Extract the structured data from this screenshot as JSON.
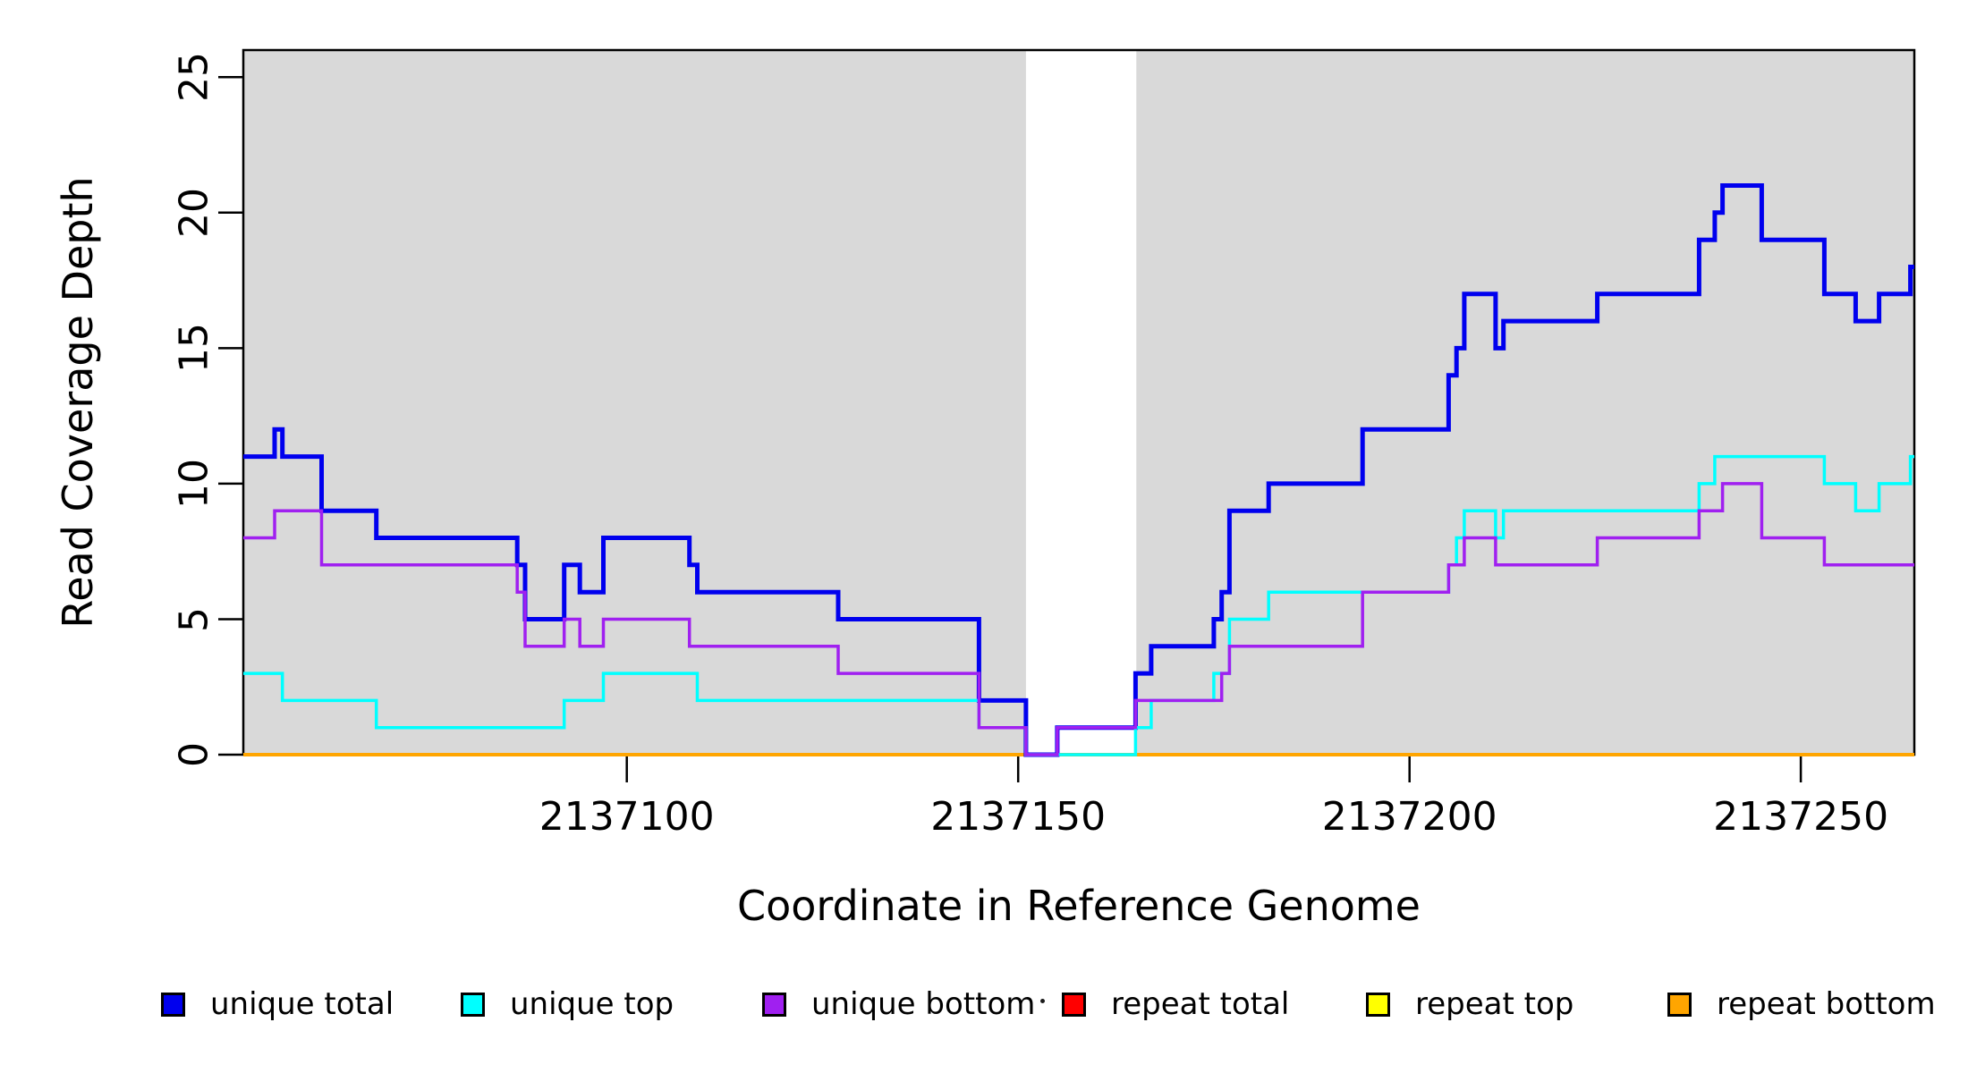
{
  "figure": {
    "xlabel": "Coordinate in Reference Genome",
    "ylabel": "Read Coverage Depth",
    "background_color": "#FFFFFF",
    "shaded_color": "#D9D9D9",
    "axis_color": "#000000"
  },
  "legend": {
    "items": [
      {
        "label": "unique total",
        "color": "#0000EE"
      },
      {
        "label": "unique top",
        "color": "#00FFFF"
      },
      {
        "label": "unique bottom",
        "color": "#A020F0"
      },
      {
        "label": "repeat total",
        "color": "#FF0000"
      },
      {
        "label": "repeat top",
        "color": "#FFFF00"
      },
      {
        "label": "repeat bottom",
        "color": "#FFA500"
      }
    ]
  },
  "chart_data": {
    "type": "line",
    "subtype": "step",
    "title": "",
    "xlabel": "Coordinate in Reference Genome",
    "ylabel": "Read Coverage Depth",
    "xlim": [
      2137051,
      2137264.5
    ],
    "ylim": [
      0,
      26
    ],
    "x_ticks": [
      2137100,
      2137150,
      2137200,
      2137250
    ],
    "y_ticks": [
      0,
      5,
      10,
      15,
      20,
      25
    ],
    "grid": false,
    "legend_position": "bottom",
    "shaded_x_ranges": [
      [
        2137051,
        2137151
      ],
      [
        2137165.1,
        2137264.5
      ]
    ],
    "gap_x_range": [
      2137151,
      2137165.1
    ],
    "draw_order": [
      "repeat total",
      "repeat top",
      "repeat bottom",
      "unique total",
      "unique top",
      "unique bottom"
    ],
    "series": [
      {
        "name": "unique total",
        "color": "#0000EE",
        "width": 5,
        "steps": [
          [
            2137051,
            11
          ],
          [
            2137055,
            12
          ],
          [
            2137056,
            11
          ],
          [
            2137061,
            9
          ],
          [
            2137068,
            8
          ],
          [
            2137086,
            7
          ],
          [
            2137087,
            5
          ],
          [
            2137092,
            7
          ],
          [
            2137094,
            6
          ],
          [
            2137097,
            8
          ],
          [
            2137108,
            7
          ],
          [
            2137109,
            6
          ],
          [
            2137127,
            5
          ],
          [
            2137145,
            2
          ],
          [
            2137151,
            0
          ],
          [
            2137155,
            1
          ],
          [
            2137165,
            3
          ],
          [
            2137167,
            4
          ],
          [
            2137175,
            5
          ],
          [
            2137176,
            6
          ],
          [
            2137177,
            9
          ],
          [
            2137182,
            10
          ],
          [
            2137194,
            12
          ],
          [
            2137205,
            14
          ],
          [
            2137206,
            15
          ],
          [
            2137207,
            17
          ],
          [
            2137211,
            15
          ],
          [
            2137212,
            16
          ],
          [
            2137224,
            17
          ],
          [
            2137237,
            19
          ],
          [
            2137239,
            20
          ],
          [
            2137240,
            21
          ],
          [
            2137245,
            19
          ],
          [
            2137253,
            17
          ],
          [
            2137257,
            16
          ],
          [
            2137260,
            17
          ],
          [
            2137264,
            18
          ]
        ]
      },
      {
        "name": "unique top",
        "color": "#00FFFF",
        "width": 3.5,
        "steps": [
          [
            2137051,
            3
          ],
          [
            2137056,
            2
          ],
          [
            2137068,
            1
          ],
          [
            2137092,
            2
          ],
          [
            2137097,
            3
          ],
          [
            2137109,
            2
          ],
          [
            2137145,
            1
          ],
          [
            2137151,
            0
          ],
          [
            2137165,
            1
          ],
          [
            2137167,
            2
          ],
          [
            2137175,
            3
          ],
          [
            2137177,
            5
          ],
          [
            2137182,
            6
          ],
          [
            2137205,
            7
          ],
          [
            2137206,
            8
          ],
          [
            2137207,
            9
          ],
          [
            2137211,
            8
          ],
          [
            2137212,
            9
          ],
          [
            2137237,
            10
          ],
          [
            2137239,
            11
          ],
          [
            2137253,
            10
          ],
          [
            2137257,
            9
          ],
          [
            2137260,
            10
          ],
          [
            2137264,
            11
          ]
        ]
      },
      {
        "name": "unique bottom",
        "color": "#A020F0",
        "width": 3.5,
        "steps": [
          [
            2137051,
            8
          ],
          [
            2137055,
            9
          ],
          [
            2137061,
            7
          ],
          [
            2137086,
            6
          ],
          [
            2137087,
            4
          ],
          [
            2137092,
            5
          ],
          [
            2137094,
            4
          ],
          [
            2137097,
            5
          ],
          [
            2137108,
            4
          ],
          [
            2137127,
            3
          ],
          [
            2137145,
            1
          ],
          [
            2137151,
            0
          ],
          [
            2137155,
            1
          ],
          [
            2137165,
            2
          ],
          [
            2137176,
            3
          ],
          [
            2137177,
            4
          ],
          [
            2137194,
            6
          ],
          [
            2137205,
            7
          ],
          [
            2137207,
            8
          ],
          [
            2137211,
            7
          ],
          [
            2137224,
            8
          ],
          [
            2137237,
            9
          ],
          [
            2137240,
            10
          ],
          [
            2137245,
            8
          ],
          [
            2137253,
            7
          ]
        ]
      },
      {
        "name": "repeat total",
        "color": "#FF0000",
        "width": 2.5,
        "steps": [
          [
            2137051,
            0
          ]
        ]
      },
      {
        "name": "repeat top",
        "color": "#FFFF00",
        "width": 2.5,
        "steps": [
          [
            2137051,
            0
          ]
        ]
      },
      {
        "name": "repeat bottom",
        "color": "#FFA500",
        "width": 4,
        "steps": [
          [
            2137051,
            0
          ]
        ]
      }
    ]
  }
}
